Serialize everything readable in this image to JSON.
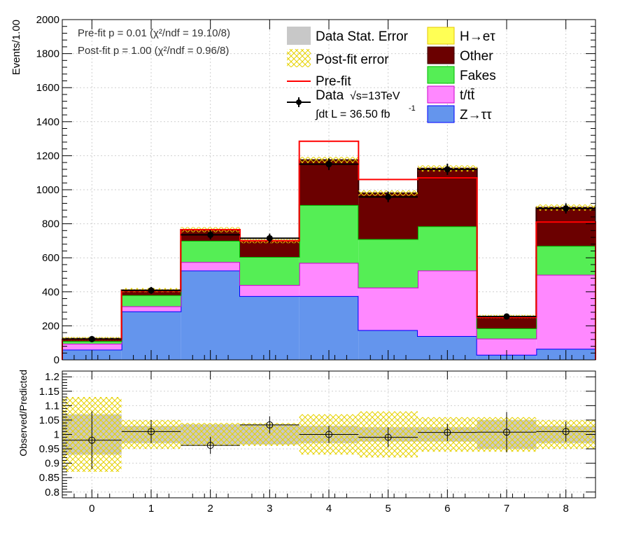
{
  "chart_data": [
    {
      "type": "stacked-histogram",
      "panel": "main",
      "ylabel": "Events/1.00",
      "ylim": [
        0,
        2000
      ],
      "yticks": [
        "0",
        "200",
        "400",
        "600",
        "800",
        "1000",
        "1200",
        "1400",
        "1600",
        "1800",
        "2000"
      ],
      "xticks": [
        "0",
        "1",
        "2",
        "3",
        "4",
        "5",
        "6",
        "7",
        "8"
      ],
      "xlim": [
        -0.5,
        8.5
      ],
      "grid": true,
      "bins": [
        0,
        1,
        2,
        3,
        4,
        5,
        6,
        7,
        8
      ],
      "series": [
        {
          "name": "Z→ττ",
          "key": "ztt",
          "color": "#6495ed",
          "edge": "#0000ff",
          "values": [
            60,
            285,
            525,
            375,
            375,
            175,
            140,
            30,
            65
          ]
        },
        {
          "name": "t/tt̄",
          "key": "top",
          "color": "#ff88ff",
          "edge": "#cc00cc",
          "values": [
            35,
            30,
            50,
            65,
            195,
            250,
            385,
            95,
            435
          ]
        },
        {
          "name": "Fakes",
          "key": "fakes",
          "color": "#55ee55",
          "edge": "#00bb00",
          "values": [
            15,
            65,
            125,
            165,
            340,
            285,
            260,
            60,
            170
          ]
        },
        {
          "name": "Other",
          "key": "other",
          "color": "#6b0000",
          "edge": "#3a0000",
          "values": [
            15,
            30,
            65,
            95,
            265,
            270,
            340,
            70,
            225
          ]
        },
        {
          "name": "H→eτ",
          "key": "signal",
          "color": "#ffff55",
          "edge": "#e6c700",
          "values": [
            0,
            0,
            0,
            0,
            0,
            0,
            0,
            0,
            0
          ]
        }
      ],
      "postfit_error": [
        10,
        12,
        15,
        14,
        18,
        16,
        18,
        10,
        18
      ],
      "prefit": [
        120,
        405,
        765,
        700,
        1285,
        1060,
        1070,
        250,
        810
      ],
      "data": {
        "name": "Data",
        "values": [
          122,
          408,
          735,
          715,
          1150,
          958,
          1120,
          255,
          890
        ],
        "errors": [
          11,
          20,
          27,
          27,
          34,
          31,
          33,
          16,
          30
        ]
      },
      "legend": {
        "stat_error": "Data Stat. Error",
        "postfit_error": "Post-fit error",
        "prefit": "Pre-fit",
        "data": "Data",
        "energy_label": "√s=13TeV",
        "lumi_label": "∫dt L = 36.50 fb",
        "lumi_exp": "-1",
        "signal": "H→eτ",
        "other": "Other",
        "fakes": "Fakes",
        "top": "t/tt̄",
        "ztt": "Z→ττ"
      },
      "fit_info": {
        "prefit": "Pre-fit   p = 0.01 (χ²/ndf = 19.10/8)",
        "postfit": "Post-fit p = 1.00 (χ²/ndf = 0.96/8)"
      },
      "colors": {
        "stat_error": "#c8c8c8",
        "postfit_hatch": "#e6d200",
        "prefit_line": "#ff0000",
        "data": "#000000"
      }
    },
    {
      "type": "ratio",
      "panel": "ratio",
      "ylabel": "Observed/Predicted",
      "ylim": [
        0.78,
        1.22
      ],
      "yticks": [
        "0.8",
        "0.85",
        "0.9",
        "0.95",
        "1",
        "1.05",
        "1.1",
        "1.15",
        "1.2"
      ],
      "xticks": [
        "0",
        "1",
        "2",
        "3",
        "4",
        "5",
        "6",
        "7",
        "8"
      ],
      "grid": true,
      "values": [
        0.98,
        1.01,
        0.962,
        1.033,
        1.0,
        0.99,
        1.007,
        1.008,
        1.01
      ],
      "errors": [
        0.1,
        0.04,
        0.03,
        0.03,
        0.03,
        0.035,
        0.03,
        0.07,
        0.035
      ],
      "stat_band": [
        0.07,
        0.03,
        0.035,
        0.035,
        0.03,
        0.025,
        0.025,
        0.05,
        0.03
      ],
      "postfit_band": [
        0.13,
        0.05,
        0.04,
        0.04,
        0.07,
        0.08,
        0.06,
        0.06,
        0.05
      ]
    }
  ]
}
